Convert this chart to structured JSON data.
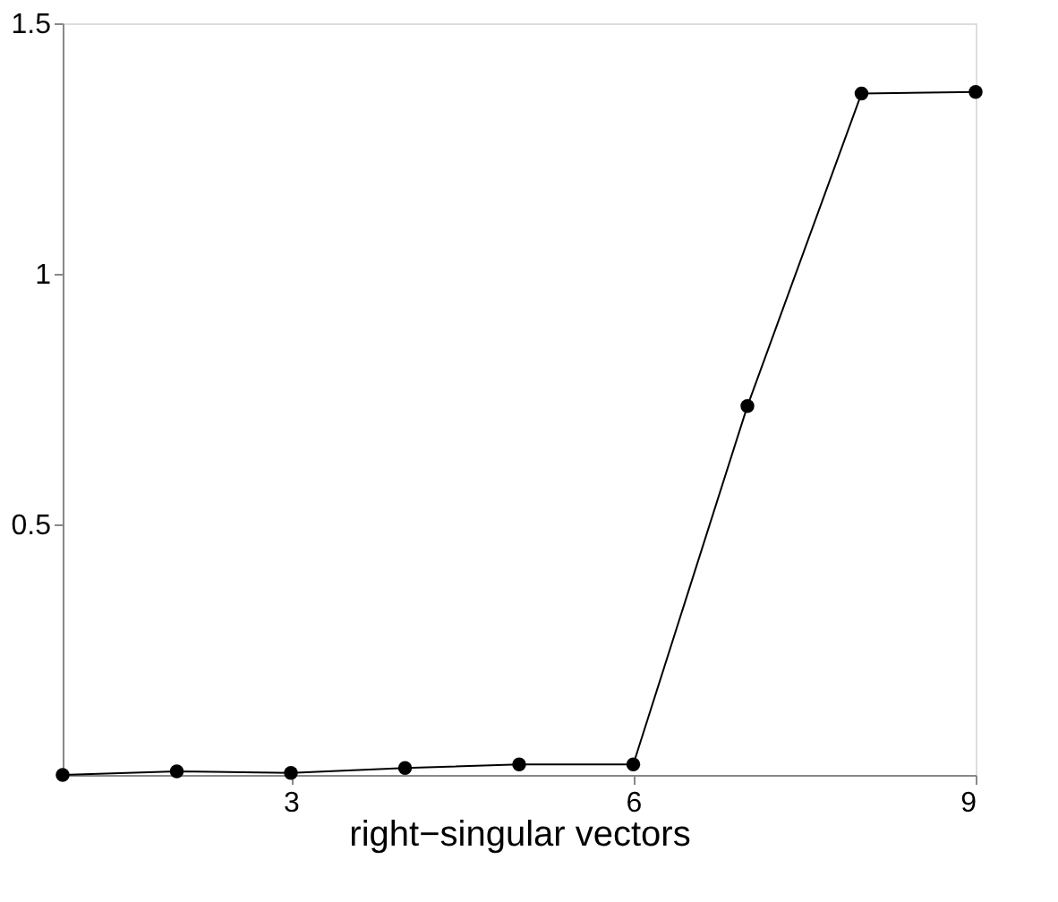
{
  "chart_data": {
    "type": "line",
    "xlabel": "right−singular vectors",
    "x": [
      1,
      2,
      3,
      4,
      5,
      6,
      7,
      8,
      9
    ],
    "series": [
      {
        "color": "#000000",
        "values": [
          0,
          0.007,
          0.004,
          0.014,
          0.021,
          0.021,
          0.736,
          1.36,
          1.363
        ]
      }
    ],
    "xlim": [
      1,
      9
    ],
    "ylim": [
      0,
      1.5
    ],
    "xticks": [
      3,
      6,
      9
    ],
    "yticks": [
      0.5,
      1,
      1.5
    ],
    "grid": false,
    "legend": false,
    "marker": "circle",
    "line_style": "solid"
  }
}
